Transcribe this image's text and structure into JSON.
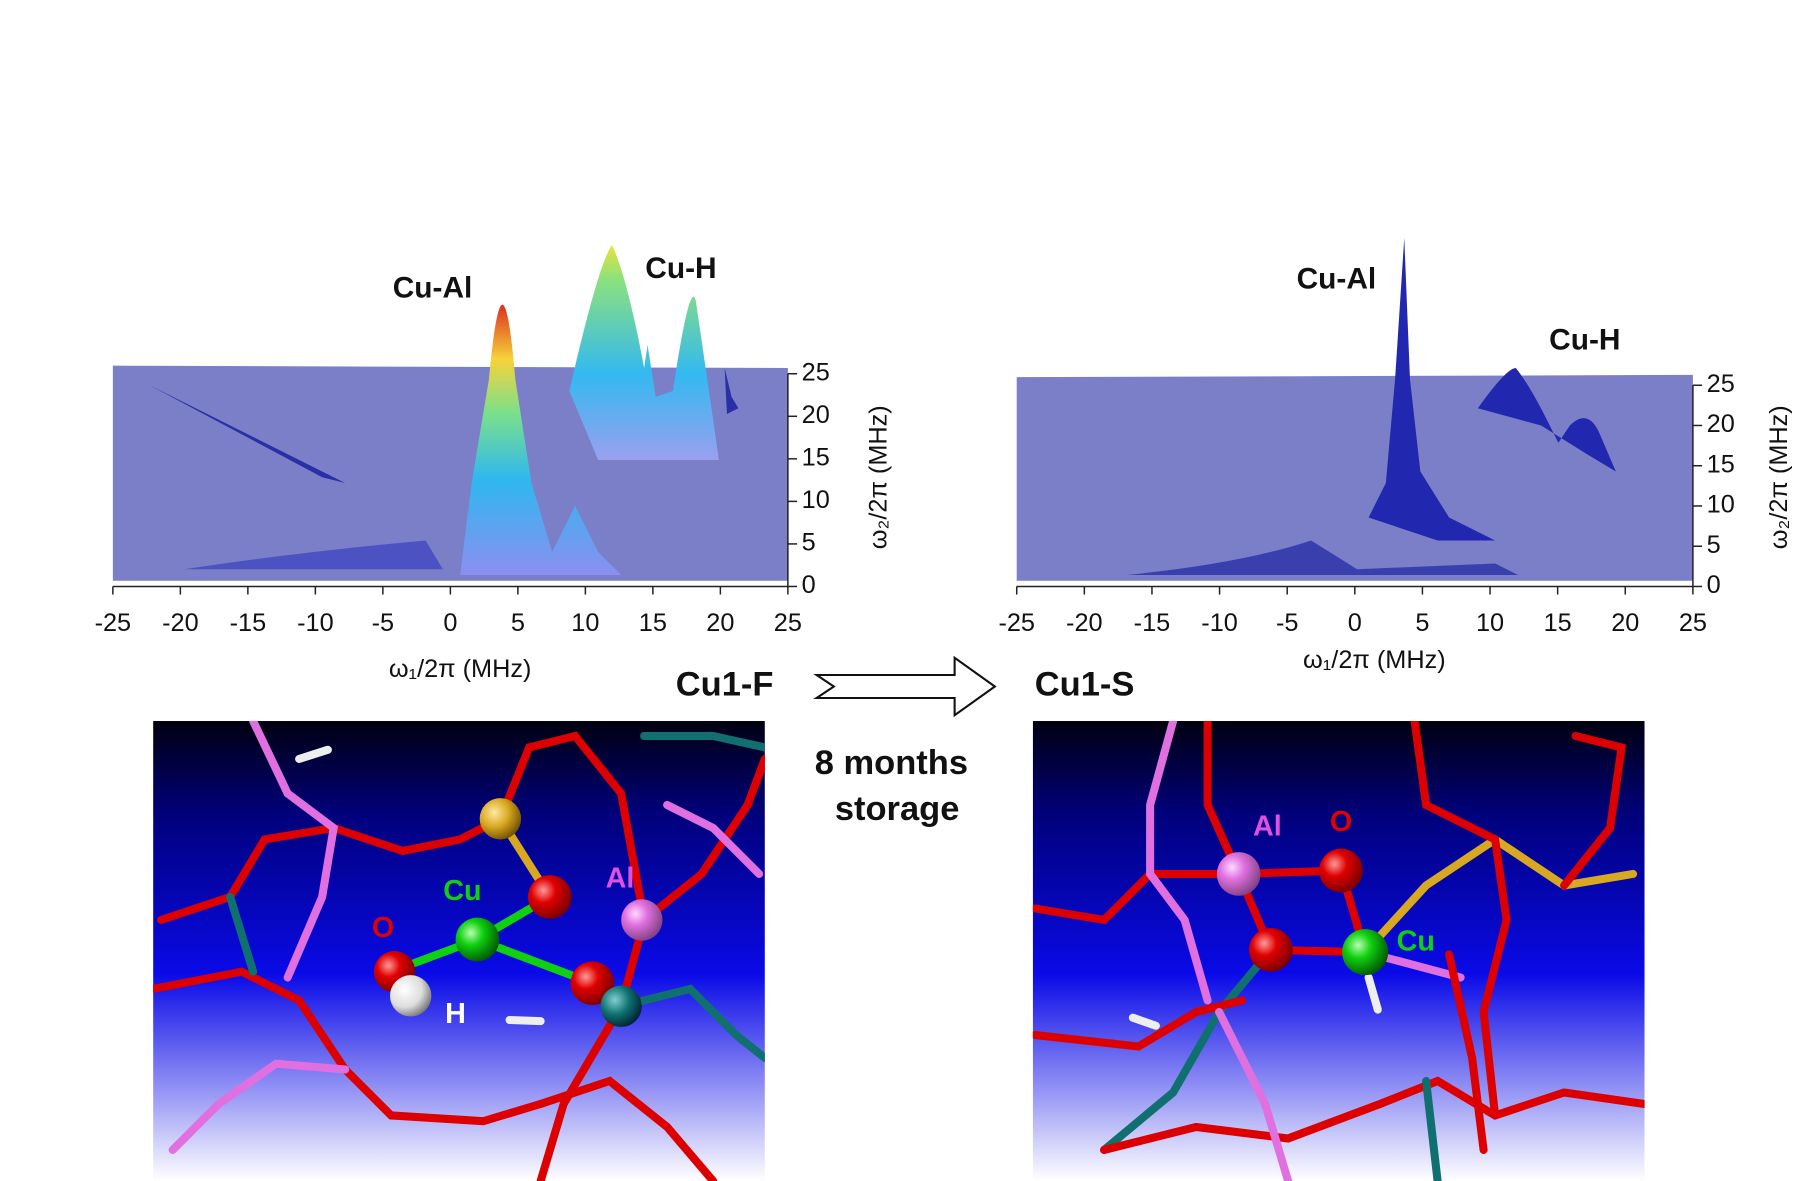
{
  "panels": [
    {
      "annotations": [
        "Cu-Al",
        "Cu-H"
      ],
      "xlabel": "ω₁/2π (MHz)",
      "ylabel": "ω₂/2π (MHz)",
      "xlim": [
        -25,
        25
      ],
      "ylim": [
        0,
        25
      ],
      "xticks": [
        -25,
        -20,
        -15,
        -10,
        -5,
        0,
        5,
        10,
        15,
        20,
        25
      ],
      "yticks": [
        0,
        5,
        10,
        15,
        20,
        25
      ]
    },
    {
      "annotations": [
        "Cu-Al",
        "Cu-H"
      ],
      "xlabel": "ω₁/2π (MHz)",
      "ylabel": "ω₂/2π (MHz)",
      "xlim": [
        -25,
        25
      ],
      "ylim": [
        0,
        25
      ],
      "xticks": [
        -25,
        -20,
        -15,
        -10,
        -5,
        0,
        5,
        10,
        15,
        20,
        25
      ],
      "yticks": [
        0,
        5,
        10,
        15,
        20,
        25
      ]
    }
  ],
  "samples": [
    "Cu1-F",
    "Cu1-S"
  ],
  "arrow_caption": [
    "8 months",
    "storage"
  ],
  "structures": [
    {
      "atoms": [
        "O",
        "H",
        "Cu",
        "Al"
      ]
    },
    {
      "atoms": [
        "Al",
        "O",
        "Cu"
      ]
    }
  ]
}
